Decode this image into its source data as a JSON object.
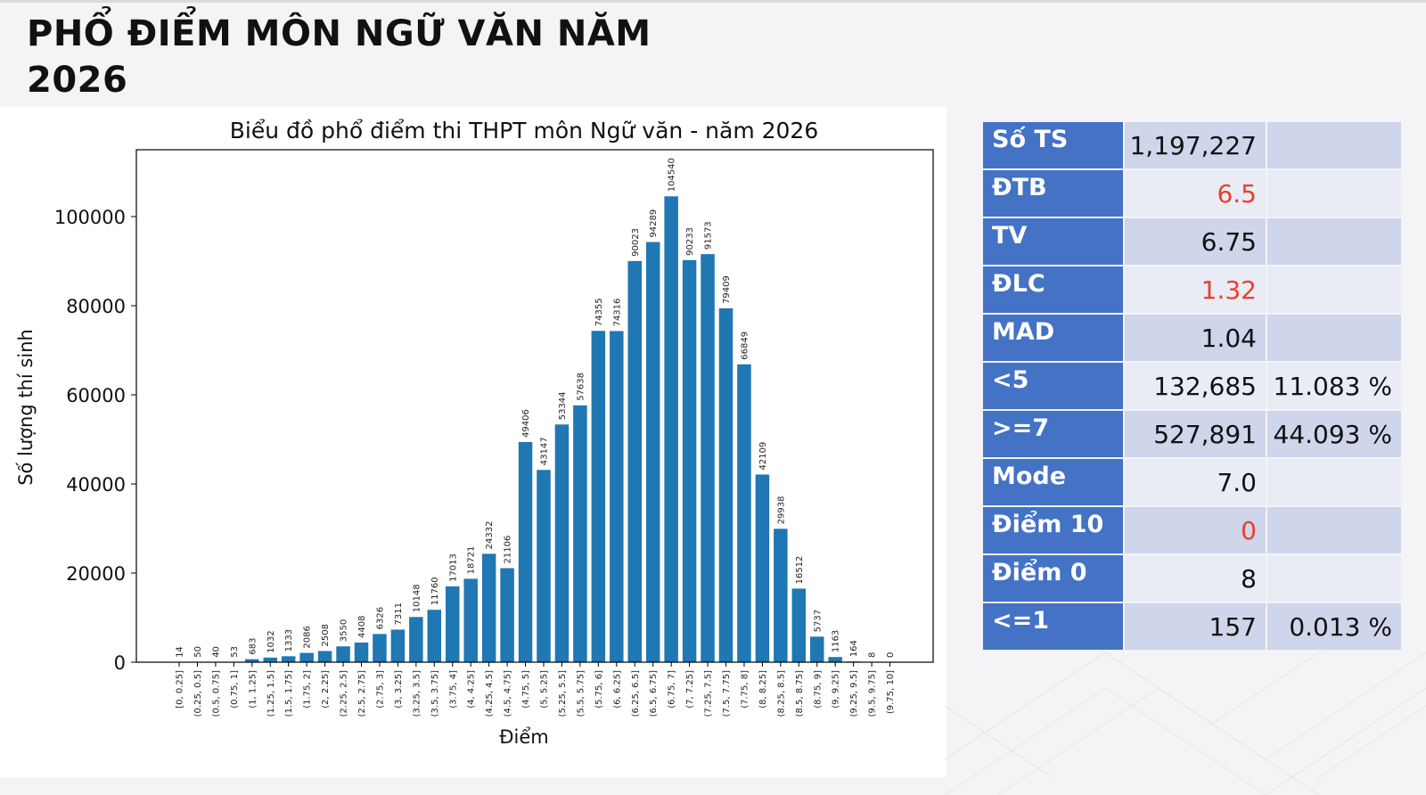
{
  "page_title_line1": "PHỔ ĐIỂM MÔN NGỮ VĂN NĂM",
  "page_title_line2": "2026",
  "colors": {
    "bar": "#1f77b4",
    "header_cell": "#4472c4",
    "row_dark": "#cfd5ea",
    "row_light": "#e9ebf5",
    "highlight": "#e8402a"
  },
  "chart_data": {
    "type": "bar",
    "title": "Biểu đồ phổ điểm thi THPT môn Ngữ văn - năm 2026",
    "xlabel": "Điểm",
    "ylabel": "Số lượng thí sinh",
    "ylim": [
      0,
      115000
    ],
    "yticks": [
      0,
      20000,
      40000,
      60000,
      80000,
      100000
    ],
    "grid": false,
    "categories": [
      "[0, 0.25]",
      "(0.25, 0.5]",
      "(0.5, 0.75]",
      "(0.75, 1]",
      "(1, 1.25]",
      "(1.25, 1.5]",
      "(1.5, 1.75]",
      "(1.75, 2]",
      "(2, 2.25]",
      "(2.25, 2.5]",
      "(2.5, 2.75]",
      "(2.75, 3]",
      "(3, 3.25]",
      "(3.25, 3.5]",
      "(3.5, 3.75]",
      "(3.75, 4]",
      "(4, 4.25]",
      "(4.25, 4.5]",
      "(4.5, 4.75]",
      "(4.75, 5]",
      "(5, 5.25]",
      "(5.25, 5.5]",
      "(5.5, 5.75]",
      "(5.75, 6]",
      "(6, 6.25]",
      "(6.25, 6.5]",
      "(6.5, 6.75]",
      "(6.75, 7]",
      "(7, 7.25]",
      "(7.25, 7.5]",
      "(7.5, 7.75]",
      "(7.75, 8]",
      "(8, 8.25]",
      "(8.25, 8.5]",
      "(8.5, 8.75]",
      "(8.75, 9]",
      "(9, 9.25]",
      "(9.25, 9.5]",
      "(9.5, 9.75]",
      "(9.75, 10]"
    ],
    "values": [
      14,
      50,
      40,
      53,
      683,
      1032,
      1333,
      2086,
      2508,
      3550,
      4408,
      6326,
      7311,
      10148,
      11760,
      17013,
      18721,
      24332,
      21106,
      49406,
      43147,
      53344,
      57638,
      74355,
      74316,
      90023,
      94289,
      104540,
      90233,
      91573,
      79409,
      66849,
      42109,
      29938,
      16512,
      5737,
      1163,
      164,
      8,
      0
    ]
  },
  "stats": [
    {
      "label": "Số TS",
      "value": "1,197,227",
      "percent": ""
    },
    {
      "label": "ĐTB",
      "value": "6.5",
      "percent": "",
      "highlight": true
    },
    {
      "label": "TV",
      "value": "6.75",
      "percent": ""
    },
    {
      "label": "ĐLC",
      "value": "1.32",
      "percent": "",
      "highlight": true
    },
    {
      "label": "MAD",
      "value": "1.04",
      "percent": ""
    },
    {
      "label": "<5",
      "value": "132,685",
      "percent": "11.083 %"
    },
    {
      "label": ">=7",
      "value": "527,891",
      "percent": "44.093 %"
    },
    {
      "label": "Mode",
      "value": "7.0",
      "percent": ""
    },
    {
      "label": "Điểm 10",
      "value": "0",
      "percent": "",
      "highlight": true
    },
    {
      "label": "Điểm 0",
      "value": "8",
      "percent": ""
    },
    {
      "label": "<=1",
      "value": "157",
      "percent": "0.013 %"
    }
  ]
}
